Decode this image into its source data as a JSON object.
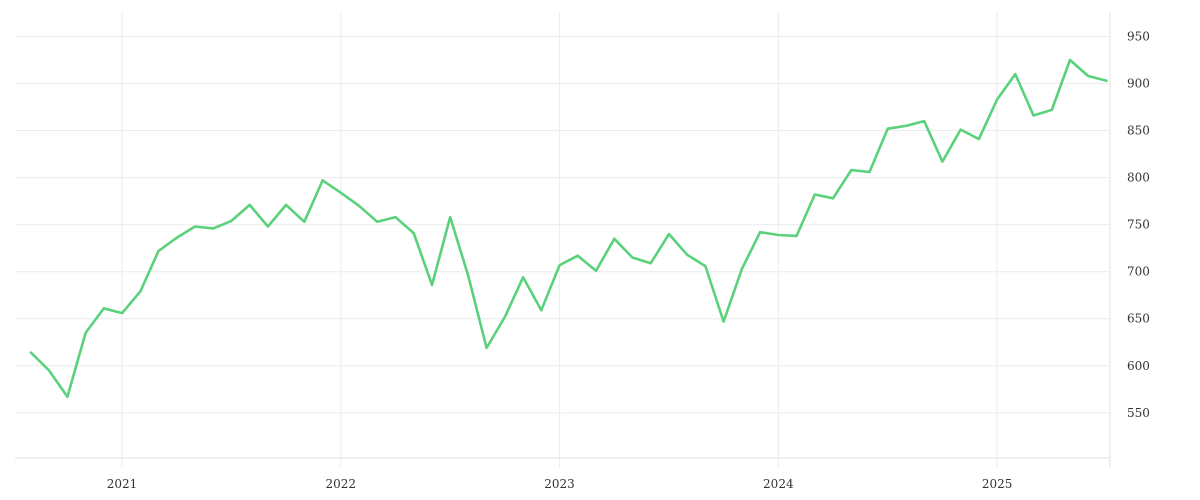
{
  "chart_data": {
    "type": "line",
    "title": "",
    "xlabel": "",
    "ylabel": "",
    "grid": true,
    "legend": "none",
    "xlim": [
      "2020-08",
      "2025-08"
    ],
    "ylim": [
      502,
      976
    ],
    "x_ticks": [
      "2021",
      "2022",
      "2023",
      "2024",
      "2025"
    ],
    "y_ticks": [
      550,
      600,
      650,
      700,
      750,
      800,
      850,
      900,
      950
    ],
    "series": [
      {
        "color": "#5ad17a",
        "points": [
          [
            "2020-08",
            614
          ],
          [
            "2020-09",
            595
          ],
          [
            "2020-10",
            567
          ],
          [
            "2020-11",
            635
          ],
          [
            "2020-12",
            661
          ],
          [
            "2021-01",
            656
          ],
          [
            "2021-02",
            679
          ],
          [
            "2021-03",
            722
          ],
          [
            "2021-04",
            736
          ],
          [
            "2021-05",
            748
          ],
          [
            "2021-06",
            746
          ],
          [
            "2021-07",
            754
          ],
          [
            "2021-08",
            771
          ],
          [
            "2021-09",
            748
          ],
          [
            "2021-10",
            771
          ],
          [
            "2021-11",
            753
          ],
          [
            "2021-12",
            797
          ],
          [
            "2022-01",
            784
          ],
          [
            "2022-02",
            770
          ],
          [
            "2022-03",
            753
          ],
          [
            "2022-04",
            758
          ],
          [
            "2022-05",
            741
          ],
          [
            "2022-06",
            686
          ],
          [
            "2022-07",
            758
          ],
          [
            "2022-08",
            695
          ],
          [
            "2022-09",
            619
          ],
          [
            "2022-10",
            652
          ],
          [
            "2022-11",
            694
          ],
          [
            "2022-12",
            659
          ],
          [
            "2023-01",
            707
          ],
          [
            "2023-02",
            717
          ],
          [
            "2023-03",
            701
          ],
          [
            "2023-04",
            735
          ],
          [
            "2023-05",
            715
          ],
          [
            "2023-06",
            709
          ],
          [
            "2023-07",
            740
          ],
          [
            "2023-08",
            718
          ],
          [
            "2023-09",
            706
          ],
          [
            "2023-10",
            647
          ],
          [
            "2023-11",
            703
          ],
          [
            "2023-12",
            742
          ],
          [
            "2024-01",
            739
          ],
          [
            "2024-02",
            738
          ],
          [
            "2024-03",
            782
          ],
          [
            "2024-04",
            778
          ],
          [
            "2024-05",
            808
          ],
          [
            "2024-06",
            806
          ],
          [
            "2024-07",
            852
          ],
          [
            "2024-08",
            855
          ],
          [
            "2024-09",
            860
          ],
          [
            "2024-10",
            817
          ],
          [
            "2024-11",
            851
          ],
          [
            "2024-12",
            841
          ],
          [
            "2025-01",
            883
          ],
          [
            "2025-02",
            910
          ],
          [
            "2025-03",
            866
          ],
          [
            "2025-04",
            872
          ],
          [
            "2025-05",
            925
          ],
          [
            "2025-06",
            908
          ],
          [
            "2025-07",
            903
          ]
        ]
      }
    ]
  }
}
